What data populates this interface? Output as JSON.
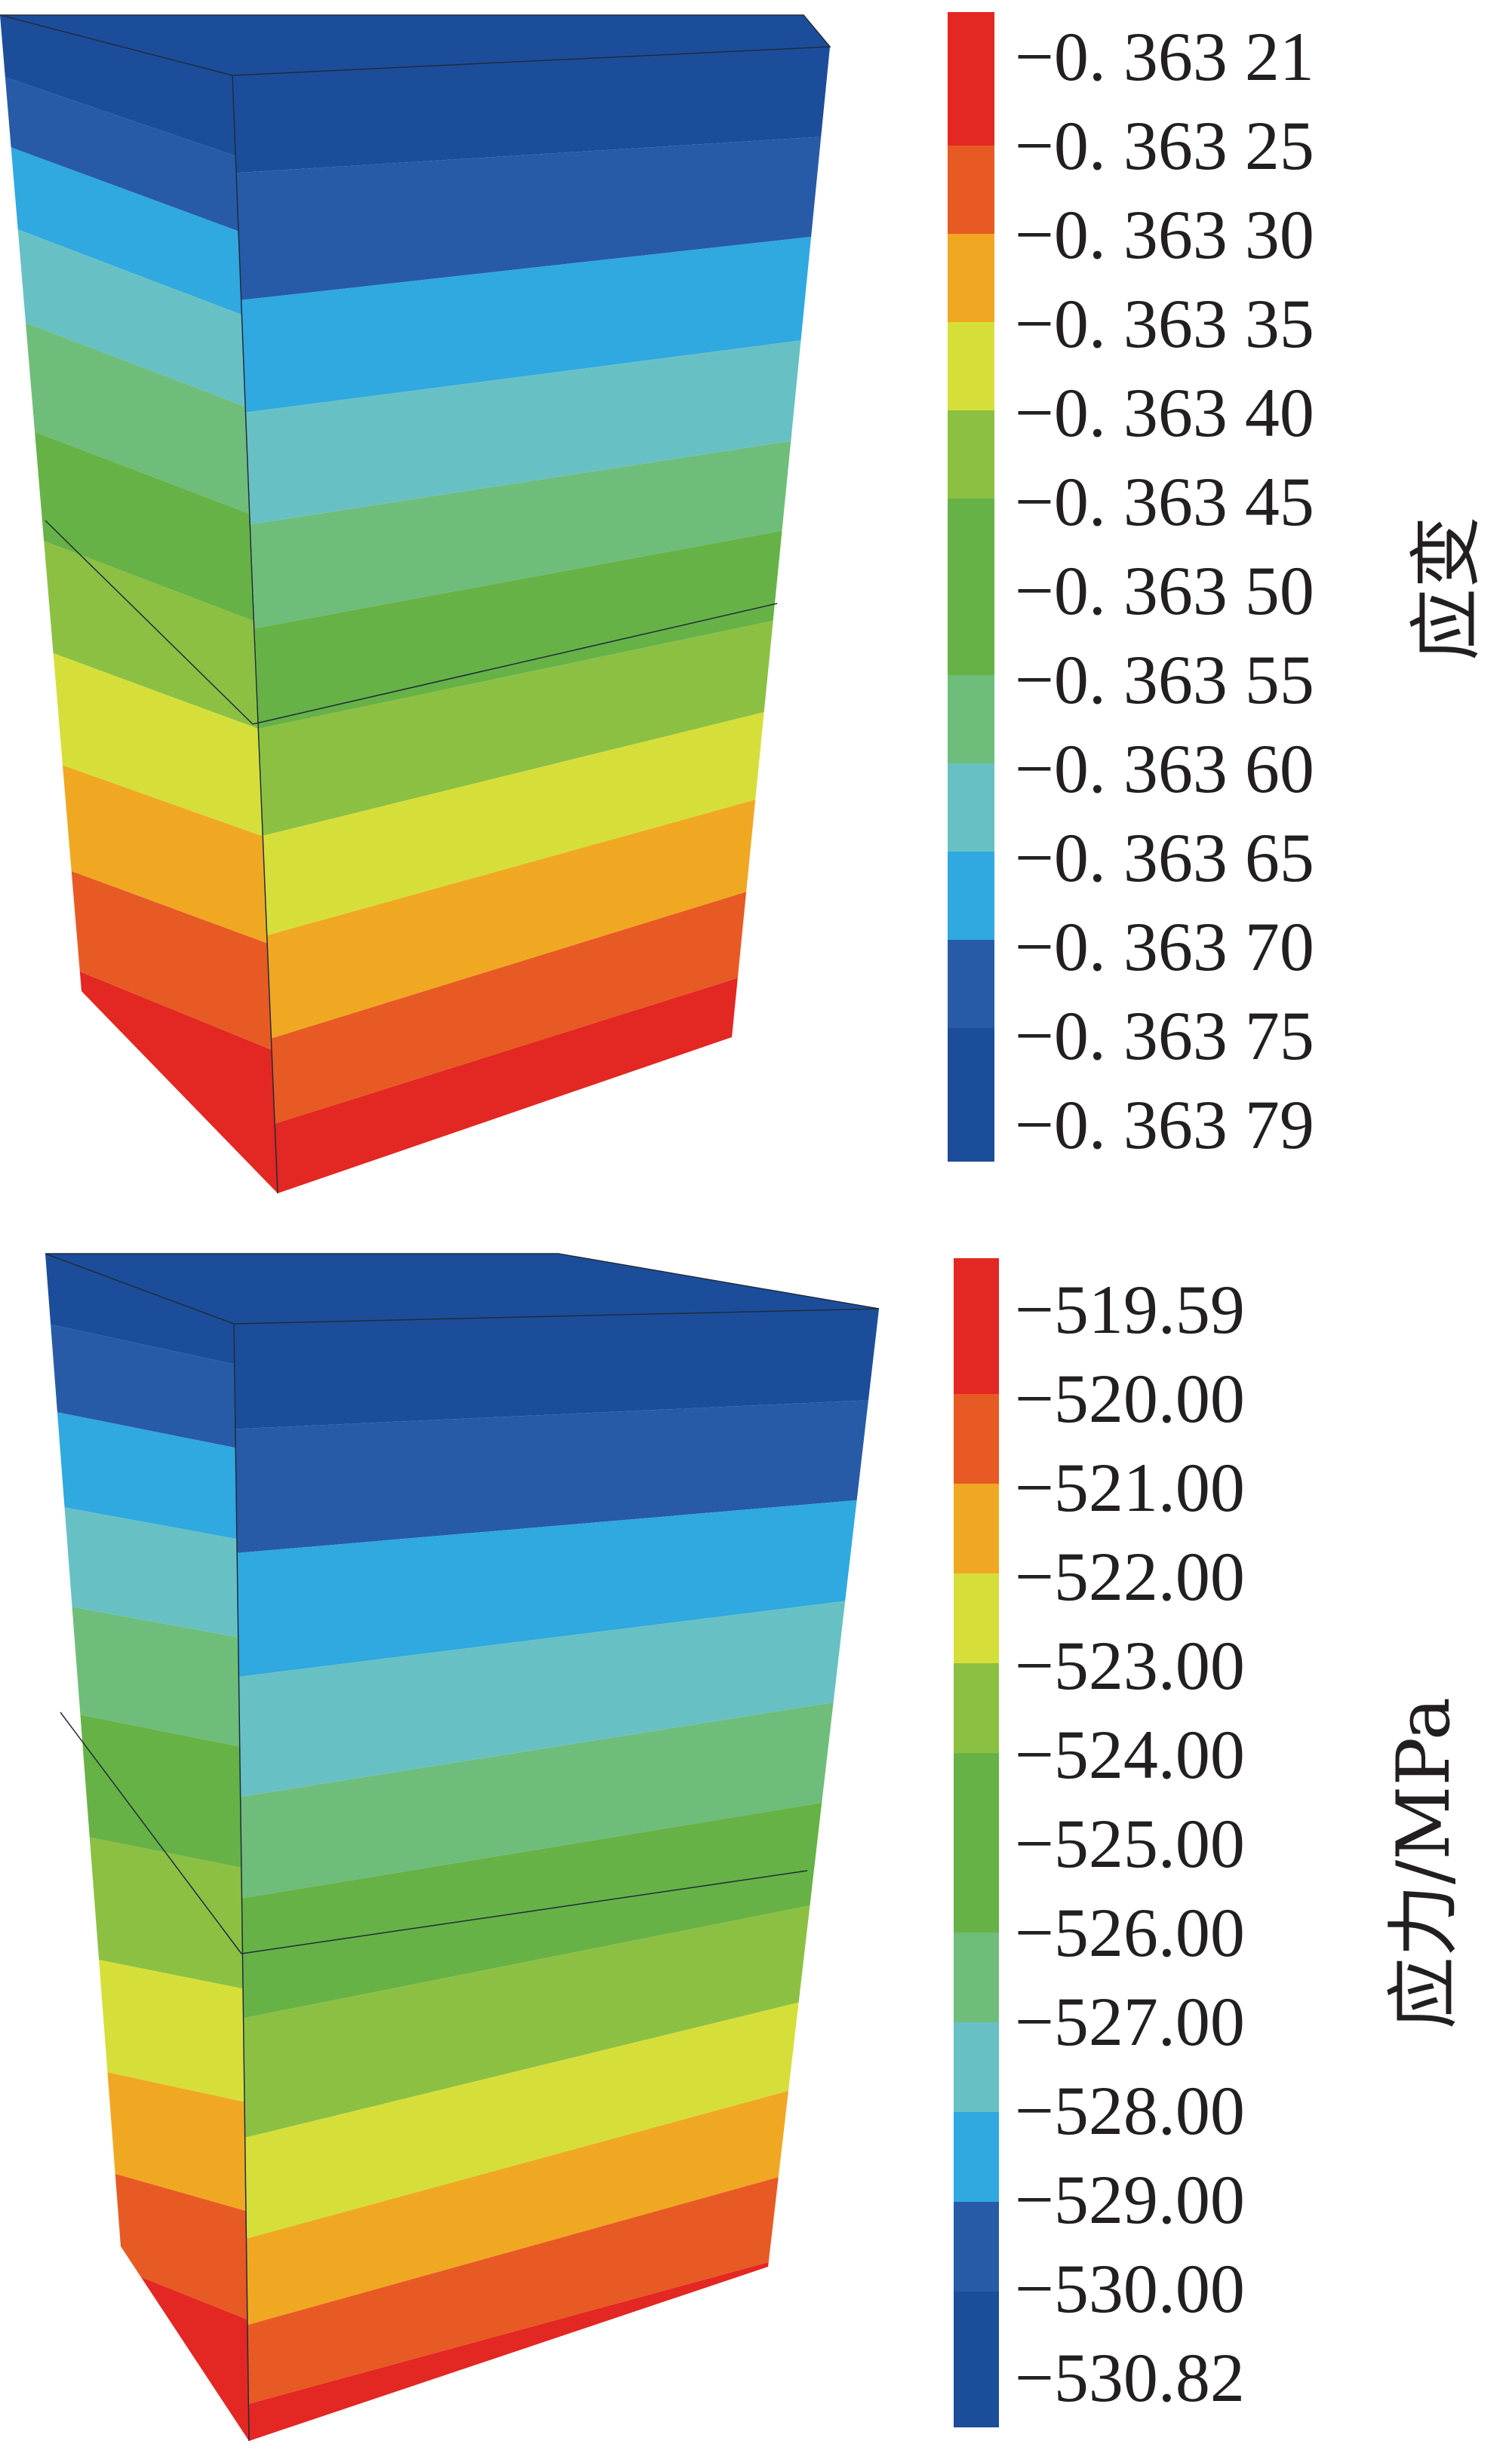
{
  "colors": [
    "#e32722",
    "#e85a23",
    "#f0a823",
    "#d6df3a",
    "#8cc043",
    "#66b246",
    "#6fbd7a",
    "#67c1c4",
    "#30a8e0",
    "#275ba7",
    "#1c4d9b"
  ],
  "panels": [
    {
      "id": "strain",
      "title": "应变",
      "bands": [
        3,
        3,
        3,
        3,
        3,
        3,
        3,
        3,
        3,
        3,
        3,
        3
      ],
      "colorbar": {
        "labels": [
          "−0. 363 21",
          "−0. 363 25",
          "−0. 363 30",
          "−0. 363 35",
          "−0. 363 40",
          "−0. 363 45",
          "−0. 363 50",
          "−0. 363 55",
          "−0. 363 60",
          "−0. 363 65",
          "−0. 363 70",
          "−0. 363 75",
          "−0. 363 79"
        ]
      }
    },
    {
      "id": "stress",
      "title": "应力/MPa",
      "colorbar": {
        "labels": [
          "−519.59",
          "−520.00",
          "−521.00",
          "−522.00",
          "−523.00",
          "−524.00",
          "−525.00",
          "−526.00",
          "−527.00",
          "−528.00",
          "−529.00",
          "−530.00",
          "−530.82"
        ]
      }
    }
  ]
}
